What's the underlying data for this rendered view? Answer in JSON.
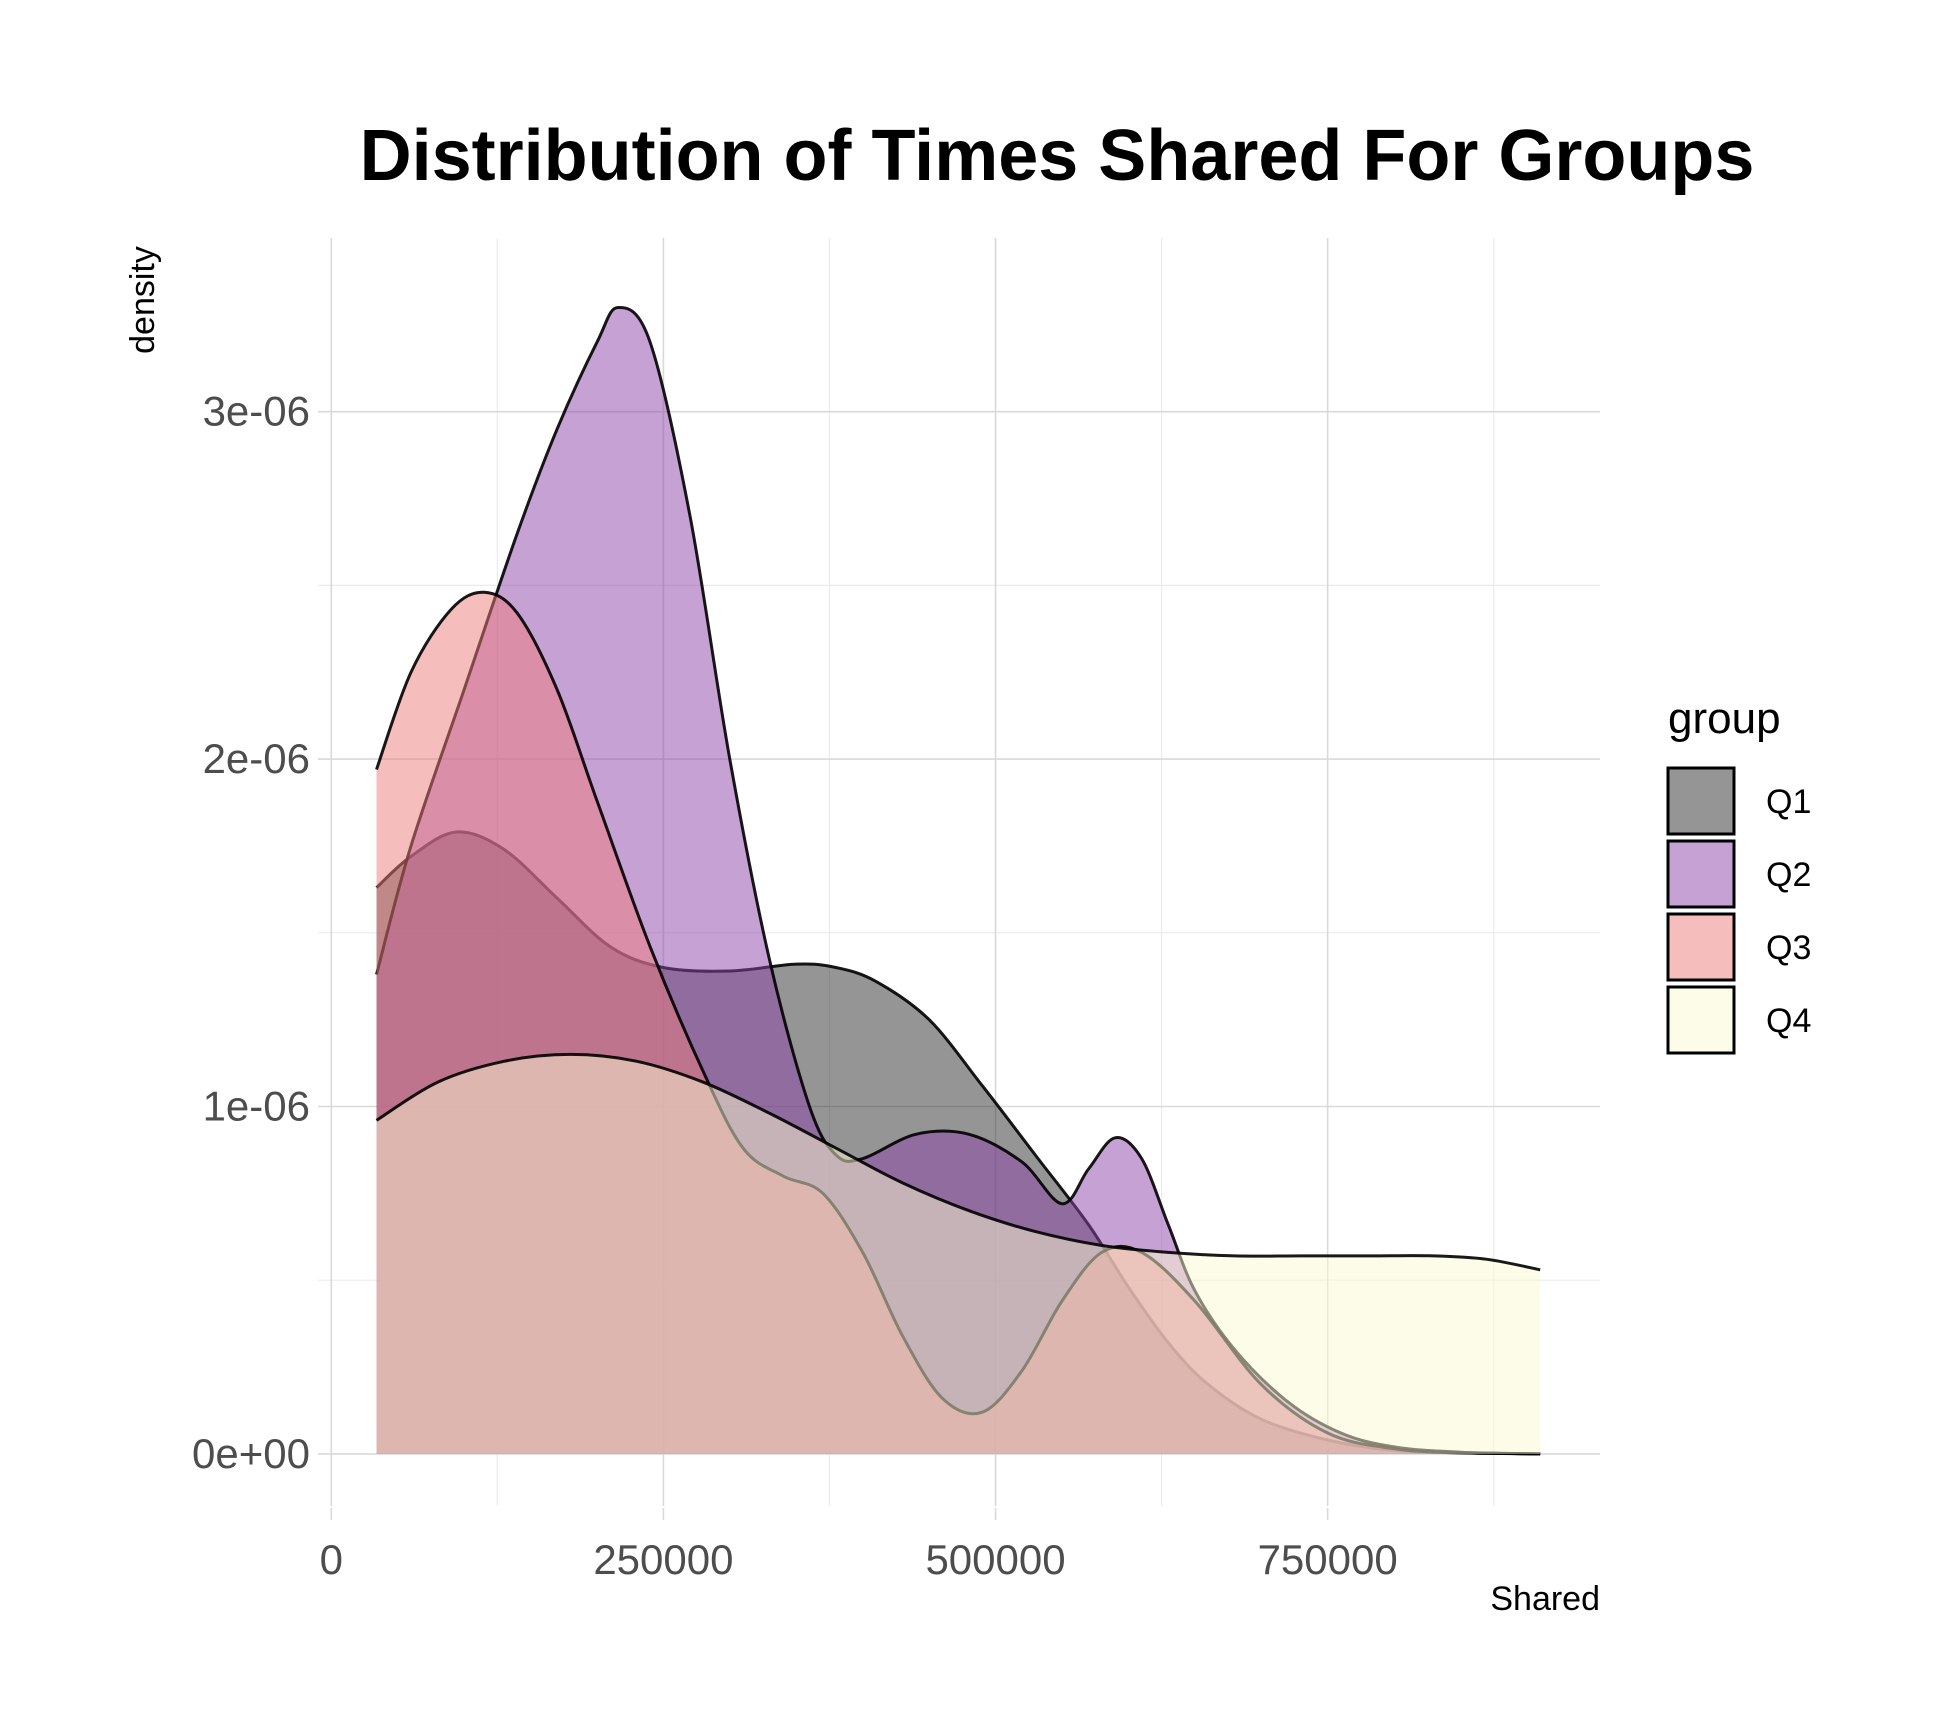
{
  "chart_data": {
    "type": "area",
    "title": "Distribution of Times Shared For Groups",
    "xlabel": "Shared",
    "ylabel": "density",
    "xlim": [
      -10000,
      955000
    ],
    "ylim": [
      -1.5e-07,
      3.5e-06
    ],
    "x_ticks": [
      0,
      250000,
      500000,
      750000
    ],
    "x_tick_labels": [
      "0",
      "250000",
      "500000",
      "750000"
    ],
    "y_ticks": [
      0,
      1e-06,
      2e-06,
      3e-06
    ],
    "y_tick_labels": [
      "0e+00",
      "1e-06",
      "2e-06",
      "3e-06"
    ],
    "grid": true,
    "legend": {
      "title": "group",
      "placement": "right"
    },
    "series": [
      {
        "name": "Q1",
        "color": "#2b2b2b",
        "x": [
          34000,
          60000,
          94000,
          130000,
          170000,
          210000,
          250000,
          300000,
          350000,
          380000,
          410000,
          450000,
          490000,
          530000,
          570000,
          600000,
          630000,
          660000,
          700000,
          750000,
          800000,
          850000,
          910000
        ],
        "y": [
          1.63e-06,
          1.72e-06,
          1.79e-06,
          1.74e-06,
          1.6e-06,
          1.46e-06,
          1.4e-06,
          1.39e-06,
          1.41e-06,
          1.4e-06,
          1.36e-06,
          1.25e-06,
          1.06e-06,
          8.6e-07,
          6.6e-07,
          4.8e-07,
          3.2e-07,
          2e-07,
          1e-07,
          4e-08,
          1e-08,
          3e-09,
          0.0
        ]
      },
      {
        "name": "Q2",
        "color": "#8e44a7",
        "x": [
          34000,
          60000,
          100000,
          140000,
          170000,
          200000,
          216000,
          240000,
          270000,
          300000,
          330000,
          360000,
          380000,
          400000,
          440000,
          480000,
          520000,
          550000,
          570000,
          590000,
          610000,
          630000,
          650000,
          680000,
          720000,
          760000,
          800000,
          850000,
          910000
        ],
        "y": [
          1.38e-06,
          1.75e-06,
          2.2e-06,
          2.65e-06,
          2.95e-06,
          3.2e-06,
          3.3e-06,
          3.2e-06,
          2.7e-06,
          2e-06,
          1.42e-06,
          1e-06,
          8.6e-07,
          8.5e-07,
          9.2e-07,
          9.2e-07,
          8.4e-07,
          7.2e-07,
          8.2e-07,
          9.1e-07,
          8.5e-07,
          6.6e-07,
          4.7e-07,
          3e-07,
          1.5e-07,
          6e-08,
          2e-08,
          5e-09,
          0.0
        ]
      },
      {
        "name": "Q3",
        "color": "#ee7b7b",
        "x": [
          34000,
          60000,
          90000,
          115000,
          140000,
          170000,
          200000,
          240000,
          280000,
          310000,
          340000,
          370000,
          400000,
          430000,
          460000,
          490000,
          520000,
          550000,
          580000,
          610000,
          650000,
          700000,
          750000,
          800000,
          850000,
          910000
        ],
        "y": [
          1.97e-06,
          2.25e-06,
          2.43e-06,
          2.48e-06,
          2.42e-06,
          2.2e-06,
          1.88e-06,
          1.46e-06,
          1.1e-06,
          8.8e-07,
          8e-07,
          7.5e-07,
          5.8e-07,
          3.4e-07,
          1.6e-07,
          1.2e-07,
          2.4e-07,
          4.4e-07,
          5.8e-07,
          5.8e-07,
          4.4e-07,
          2e-07,
          6e-08,
          1.5e-08,
          3e-09,
          0.0
        ]
      },
      {
        "name": "Q4",
        "color": "#fcfad2",
        "x": [
          34000,
          80000,
          130000,
          180000,
          230000,
          280000,
          330000,
          380000,
          430000,
          480000,
          530000,
          580000,
          630000,
          680000,
          730000,
          780000,
          830000,
          870000,
          910000
        ],
        "y": [
          9.6e-07,
          1.07e-06,
          1.13e-06,
          1.15e-06,
          1.13e-06,
          1.07e-06,
          9.8e-07,
          8.8e-07,
          7.8e-07,
          7e-07,
          6.4e-07,
          6e-07,
          5.8e-07,
          5.7e-07,
          5.7e-07,
          5.7e-07,
          5.7e-07,
          5.6e-07,
          5.3e-07
        ]
      }
    ]
  }
}
